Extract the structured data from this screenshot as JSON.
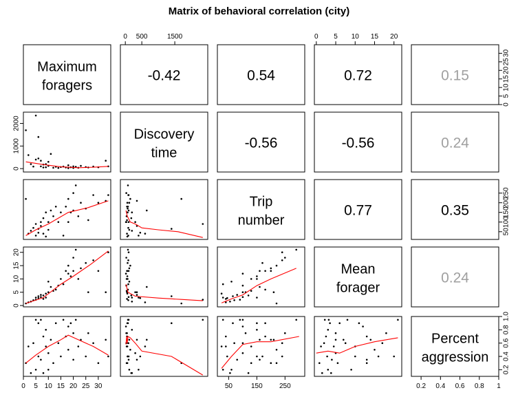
{
  "chart_data": {
    "type": "scatter",
    "title": "Matrix of behavioral correlation (city)",
    "variables": [
      {
        "label": [
          "Maximum",
          "foragers"
        ],
        "range": [
          0,
          35
        ],
        "ticks": [
          0,
          5,
          10,
          15,
          20,
          25,
          30
        ]
      },
      {
        "label": [
          "Discovery",
          "time"
        ],
        "range": [
          -150,
          2500
        ],
        "ticks": [
          0,
          500,
          1500
        ],
        "side_ticks": [
          0,
          1000,
          2000
        ]
      },
      {
        "label": [
          "Trip",
          "number"
        ],
        "range": [
          10,
          320
        ],
        "ticks": [
          50,
          150,
          250
        ],
        "side_ticks": [
          50,
          100,
          150,
          200,
          250
        ]
      },
      {
        "label": [
          "Mean",
          "forager"
        ],
        "range": [
          -0.5,
          22
        ],
        "ticks": [
          0,
          5,
          10,
          15,
          20
        ]
      },
      {
        "label": [
          "Percent",
          "aggression"
        ],
        "range": [
          0.1,
          1.0
        ],
        "ticks": [
          0.2,
          0.4,
          0.6,
          0.8,
          1.0
        ]
      }
    ],
    "correlations": [
      {
        "row": 0,
        "col": 1,
        "text": "-0.42",
        "color": "#000000"
      },
      {
        "row": 0,
        "col": 2,
        "text": "0.54",
        "color": "#000000"
      },
      {
        "row": 0,
        "col": 3,
        "text": "0.72",
        "color": "#000000"
      },
      {
        "row": 0,
        "col": 4,
        "text": "0.15",
        "color": "#a0a0a0"
      },
      {
        "row": 1,
        "col": 2,
        "text": "-0.56",
        "color": "#000000"
      },
      {
        "row": 1,
        "col": 3,
        "text": "-0.56",
        "color": "#000000"
      },
      {
        "row": 1,
        "col": 4,
        "text": "0.24",
        "color": "#a0a0a0"
      },
      {
        "row": 2,
        "col": 3,
        "text": "0.77",
        "color": "#000000"
      },
      {
        "row": 2,
        "col": 4,
        "text": "0.35",
        "color": "#000000"
      },
      {
        "row": 3,
        "col": 4,
        "text": "0.24",
        "color": "#a0a0a0"
      }
    ],
    "observations": [
      {
        "max_foragers": 1,
        "discovery_time": 1700,
        "trip_number": 220,
        "mean_forager": 0.8,
        "percent_aggression": 0.3
      },
      {
        "max_foragers": 2,
        "discovery_time": 600,
        "trip_number": 40,
        "mean_forager": 1.2,
        "percent_aggression": 0.55
      },
      {
        "max_foragers": 3,
        "discovery_time": 200,
        "trip_number": 55,
        "mean_forager": 1.5,
        "percent_aggression": 0.15
      },
      {
        "max_foragers": 4,
        "discovery_time": 90,
        "trip_number": 70,
        "mean_forager": 2.0,
        "percent_aggression": 0.6
      },
      {
        "max_foragers": 5,
        "discovery_time": 2350,
        "trip_number": 90,
        "mean_forager": 2.2,
        "percent_aggression": 0.95
      },
      {
        "max_foragers": 5,
        "discovery_time": 400,
        "trip_number": 30,
        "mean_forager": 3.0,
        "percent_aggression": 0.2
      },
      {
        "max_foragers": 6,
        "discovery_time": 1400,
        "trip_number": 65,
        "mean_forager": 3.5,
        "percent_aggression": 0.9
      },
      {
        "max_foragers": 6,
        "discovery_time": 450,
        "trip_number": 45,
        "mean_forager": 2.8,
        "percent_aggression": 0.4
      },
      {
        "max_foragers": 7,
        "discovery_time": 100,
        "trip_number": 100,
        "mean_forager": 3.2,
        "percent_aggression": 0.95
      },
      {
        "max_foragers": 7,
        "discovery_time": 350,
        "trip_number": 80,
        "mean_forager": 4.0,
        "percent_aggression": 0.35
      },
      {
        "max_foragers": 8,
        "discovery_time": 50,
        "trip_number": 40,
        "mean_forager": 2.5,
        "percent_aggression": 0.7
      },
      {
        "max_foragers": 8,
        "discovery_time": 180,
        "trip_number": 120,
        "mean_forager": 3.8,
        "percent_aggression": 0.15
      },
      {
        "max_foragers": 9,
        "discovery_time": 200,
        "trip_number": 150,
        "mean_forager": 3.0,
        "percent_aggression": 0.8
      },
      {
        "max_foragers": 9,
        "discovery_time": 60,
        "trip_number": 25,
        "mean_forager": 4.5,
        "percent_aggression": 0.55
      },
      {
        "max_foragers": 10,
        "discovery_time": 300,
        "trip_number": 100,
        "mean_forager": 5.0,
        "percent_aggression": 0.45
      },
      {
        "max_foragers": 10,
        "discovery_time": 120,
        "trip_number": 60,
        "mean_forager": 9.0,
        "percent_aggression": 0.2
      },
      {
        "max_foragers": 11,
        "discovery_time": 650,
        "trip_number": 160,
        "mean_forager": 7.0,
        "percent_aggression": 0.65
      },
      {
        "max_foragers": 12,
        "discovery_time": 40,
        "trip_number": 130,
        "mean_forager": 5.5,
        "percent_aggression": 0.3
      },
      {
        "max_foragers": 13,
        "discovery_time": 80,
        "trip_number": 180,
        "mean_forager": 6.0,
        "percent_aggression": 0.9
      },
      {
        "max_foragers": 14,
        "discovery_time": 30,
        "trip_number": 100,
        "mean_forager": 7.5,
        "percent_aggression": 0.6
      },
      {
        "max_foragers": 15,
        "discovery_time": 70,
        "trip_number": 150,
        "mean_forager": 10.0,
        "percent_aggression": 0.4
      },
      {
        "max_foragers": 16,
        "discovery_time": 90,
        "trip_number": 30,
        "mean_forager": 8.0,
        "percent_aggression": 0.95
      },
      {
        "max_foragers": 17,
        "discovery_time": 50,
        "trip_number": 180,
        "mean_forager": 13.0,
        "percent_aggression": 0.7
      },
      {
        "max_foragers": 18,
        "discovery_time": 20,
        "trip_number": 100,
        "mean_forager": 12.0,
        "percent_aggression": 0.85
      },
      {
        "max_foragers": 18,
        "discovery_time": 150,
        "trip_number": 220,
        "mean_forager": 15.0,
        "percent_aggression": 0.5
      },
      {
        "max_foragers": 19,
        "discovery_time": 60,
        "trip_number": 150,
        "mean_forager": 11.0,
        "percent_aggression": 0.9
      },
      {
        "max_foragers": 20,
        "discovery_time": 30,
        "trip_number": 250,
        "mean_forager": 18.0,
        "percent_aggression": 0.75
      },
      {
        "max_foragers": 20,
        "discovery_time": 100,
        "trip_number": 160,
        "mean_forager": 13.0,
        "percent_aggression": 0.35
      },
      {
        "max_foragers": 21,
        "discovery_time": 80,
        "trip_number": 290,
        "mean_forager": 21.0,
        "percent_aggression": 0.95
      },
      {
        "max_foragers": 22,
        "discovery_time": 40,
        "trip_number": 130,
        "mean_forager": 10.0,
        "percent_aggression": 0.55
      },
      {
        "max_foragers": 23,
        "discovery_time": 120,
        "trip_number": 200,
        "mean_forager": 14.0,
        "percent_aggression": 0.65
      },
      {
        "max_foragers": 25,
        "discovery_time": 70,
        "trip_number": 170,
        "mean_forager": 16.0,
        "percent_aggression": 0.4
      },
      {
        "max_foragers": 26,
        "discovery_time": 50,
        "trip_number": 110,
        "mean_forager": 5.0,
        "percent_aggression": 0.75
      },
      {
        "max_foragers": 28,
        "discovery_time": 90,
        "trip_number": 240,
        "mean_forager": 17.0,
        "percent_aggression": 0.6
      },
      {
        "max_foragers": 30,
        "discovery_time": 60,
        "trip_number": 200,
        "mean_forager": 13.0,
        "percent_aggression": 0.3
      },
      {
        "max_foragers": 33,
        "discovery_time": 350,
        "trip_number": 210,
        "mean_forager": 5.0,
        "percent_aggression": 0.65
      },
      {
        "max_foragers": 34,
        "discovery_time": 100,
        "trip_number": 240,
        "mean_forager": 20.0,
        "percent_aggression": 0.4
      }
    ],
    "smooth_lines": [
      {
        "row": 1,
        "col": 0,
        "points": [
          [
            1,
            300
          ],
          [
            8,
            180
          ],
          [
            15,
            80
          ],
          [
            22,
            40
          ],
          [
            28,
            60
          ],
          [
            34,
            100
          ]
        ]
      },
      {
        "row": 2,
        "col": 0,
        "points": [
          [
            1,
            30
          ],
          [
            5,
            60
          ],
          [
            10,
            90
          ],
          [
            18,
            150
          ],
          [
            26,
            175
          ],
          [
            34,
            210
          ]
        ]
      },
      {
        "row": 2,
        "col": 1,
        "points": [
          [
            20,
            160
          ],
          [
            60,
            130
          ],
          [
            150,
            100
          ],
          [
            300,
            90
          ],
          [
            500,
            70
          ],
          [
            1000,
            60
          ],
          [
            1600,
            50
          ],
          [
            2350,
            20
          ]
        ]
      },
      {
        "row": 3,
        "col": 0,
        "points": [
          [
            1,
            0.8
          ],
          [
            8,
            3.0
          ],
          [
            15,
            8.0
          ],
          [
            20,
            11.0
          ],
          [
            27,
            15.5
          ],
          [
            34,
            20.5
          ]
        ]
      },
      {
        "row": 3,
        "col": 1,
        "points": [
          [
            20,
            8.0
          ],
          [
            80,
            5.0
          ],
          [
            300,
            3.5
          ],
          [
            1000,
            2.8
          ],
          [
            1700,
            2.3
          ],
          [
            2350,
            1.8
          ]
        ]
      },
      {
        "row": 3,
        "col": 2,
        "points": [
          [
            25,
            1.0
          ],
          [
            60,
            2.5
          ],
          [
            100,
            4.0
          ],
          [
            150,
            7.5
          ],
          [
            200,
            10.0
          ],
          [
            290,
            14.0
          ]
        ]
      },
      {
        "row": 4,
        "col": 0,
        "points": [
          [
            1,
            0.3
          ],
          [
            5,
            0.42
          ],
          [
            10,
            0.55
          ],
          [
            15,
            0.65
          ],
          [
            18,
            0.72
          ],
          [
            22,
            0.65
          ],
          [
            28,
            0.55
          ],
          [
            34,
            0.42
          ]
        ]
      },
      {
        "row": 4,
        "col": 1,
        "points": [
          [
            20,
            0.58
          ],
          [
            40,
            0.7
          ],
          [
            60,
            0.6
          ],
          [
            80,
            0.7
          ],
          [
            150,
            0.68
          ],
          [
            300,
            0.6
          ],
          [
            500,
            0.48
          ],
          [
            1400,
            0.4
          ],
          [
            2350,
            0.12
          ]
        ]
      },
      {
        "row": 4,
        "col": 2,
        "points": [
          [
            25,
            0.22
          ],
          [
            60,
            0.4
          ],
          [
            100,
            0.58
          ],
          [
            150,
            0.62
          ],
          [
            200,
            0.62
          ],
          [
            300,
            0.7
          ]
        ]
      },
      {
        "row": 4,
        "col": 3,
        "points": [
          [
            0,
            0.45
          ],
          [
            3,
            0.48
          ],
          [
            6,
            0.45
          ],
          [
            10,
            0.55
          ],
          [
            15,
            0.62
          ],
          [
            21,
            0.68
          ]
        ]
      }
    ]
  }
}
